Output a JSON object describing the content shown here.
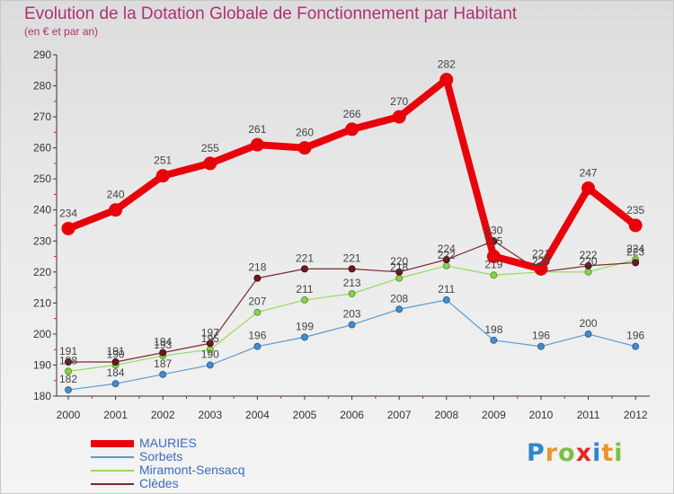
{
  "chart_data": {
    "type": "line",
    "title": "Evolution de la Dotation Globale de Fonctionnement par Habitant",
    "subtitle": "(en € et par an)",
    "xlabel": "",
    "ylabel": "",
    "x": [
      2000,
      2001,
      2002,
      2003,
      2004,
      2005,
      2006,
      2007,
      2008,
      2009,
      2010,
      2011,
      2012
    ],
    "ylim": [
      180,
      290
    ],
    "yticks": [
      180,
      190,
      200,
      210,
      220,
      230,
      240,
      250,
      260,
      270,
      280,
      290
    ],
    "grid": false,
    "legend_position": "bottom-left",
    "series": [
      {
        "name": "MAURIES",
        "color": "#e8000b",
        "values": [
          234,
          240,
          251,
          255,
          261,
          260,
          266,
          270,
          282,
          225,
          221,
          247,
          235
        ]
      },
      {
        "name": "Sorbets",
        "color": "#5a9ad0",
        "values": [
          182,
          184,
          187,
          190,
          196,
          199,
          203,
          208,
          211,
          198,
          196,
          200,
          196
        ]
      },
      {
        "name": "Miramont-Sensacq",
        "color": "#9ad860",
        "values": [
          188,
          190,
          193,
          195,
          207,
          211,
          213,
          218,
          222,
          219,
          220,
          220,
          224
        ]
      },
      {
        "name": "Clèdes",
        "color": "#7a2a30",
        "values": [
          191,
          191,
          194,
          197,
          218,
          221,
          221,
          220,
          224,
          230,
          220,
          222,
          223
        ]
      }
    ]
  },
  "logo": {
    "letters": [
      "P",
      "r",
      "o",
      "x",
      "i",
      "t",
      "i"
    ],
    "colors": [
      "#2f87c8",
      "#e8962a",
      "#7ac043",
      "#e02a28",
      "#2f87c8",
      "#e8962a",
      "#7ac043"
    ]
  }
}
